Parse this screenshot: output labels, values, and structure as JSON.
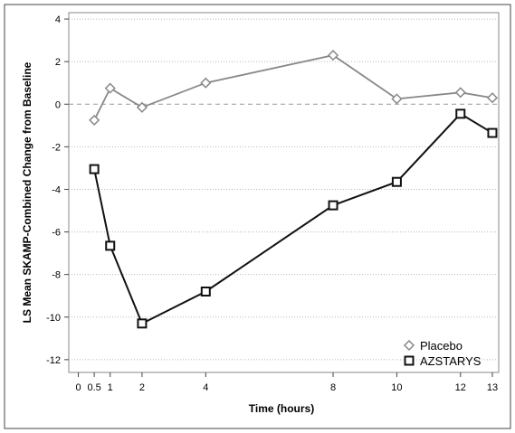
{
  "chart_data": {
    "type": "line",
    "xlabel": "Time (hours)",
    "ylabel": "LS Mean SKAMP-Combined Change from Baseline",
    "xlim": [
      -0.3,
      13.2
    ],
    "ylim": [
      -12.6,
      4.3
    ],
    "x_ticks": [
      0,
      0.5,
      1,
      2,
      4,
      8,
      10,
      12,
      13
    ],
    "x_tick_labels": [
      "0",
      "0.5",
      "1",
      "2",
      "4",
      "8",
      "10",
      "12",
      "13"
    ],
    "y_ticks": [
      4,
      2,
      0,
      -2,
      -4,
      -6,
      -8,
      -10,
      -12
    ],
    "y_tick_labels": [
      "4",
      "2",
      "0",
      "-2",
      "-4",
      "-6",
      "-8",
      "-10",
      "-12"
    ],
    "reference_line": {
      "y": 0,
      "style": "dashed"
    },
    "grid": {
      "horizontal": true,
      "style": "dotted"
    },
    "legend_position": "bottom-right",
    "series": [
      {
        "name": "Placebo",
        "marker": "diamond",
        "color": "#888888",
        "x": [
          0.5,
          1,
          2,
          4,
          8,
          10,
          12,
          13
        ],
        "y": [
          -0.75,
          0.75,
          -0.15,
          1.0,
          2.3,
          0.25,
          0.55,
          0.3
        ]
      },
      {
        "name": "AZSTARYS",
        "marker": "square",
        "color": "#111111",
        "x": [
          0.5,
          1,
          2,
          4,
          8,
          10,
          12,
          13
        ],
        "y": [
          -3.05,
          -6.65,
          -10.3,
          -8.8,
          -4.75,
          -3.65,
          -0.45,
          -1.35
        ]
      }
    ]
  }
}
